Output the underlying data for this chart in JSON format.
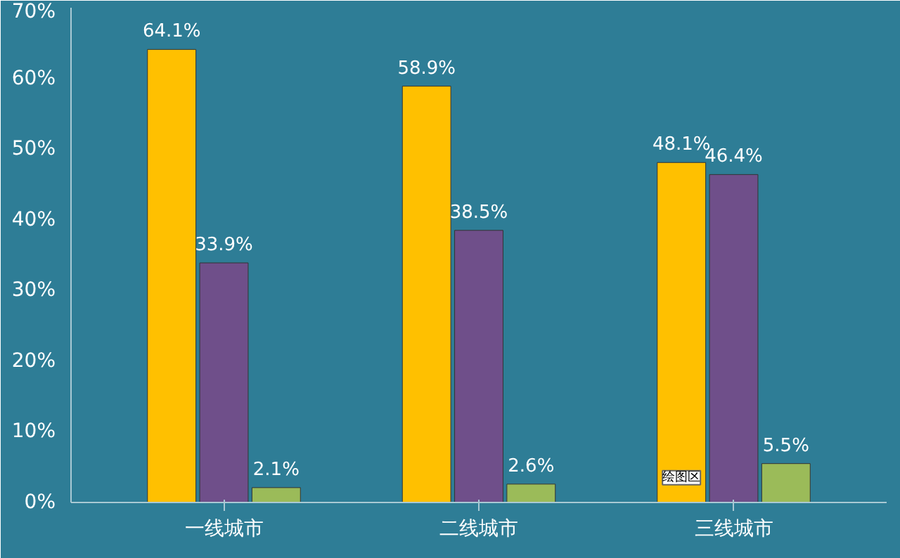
{
  "chart_data": {
    "type": "bar",
    "categories": [
      "一线城市",
      "二线城市",
      "三线城市"
    ],
    "series": [
      {
        "color": "#ffc000",
        "values": [
          64.1,
          58.9,
          48.1
        ],
        "value_labels": [
          "64.1%",
          "58.9%",
          "48.1%"
        ]
      },
      {
        "color": "#6f4f8a",
        "values": [
          33.9,
          38.5,
          46.4
        ],
        "value_labels": [
          "33.9%",
          "38.5%",
          "46.4%"
        ]
      },
      {
        "color": "#9bbb59",
        "values": [
          2.1,
          2.6,
          5.5
        ],
        "value_labels": [
          "2.1%",
          "2.6%",
          "5.5%"
        ]
      }
    ],
    "ylim": [
      0,
      70
    ],
    "yticks": [
      {
        "value": 0,
        "label": "0%"
      },
      {
        "value": 10,
        "label": "10%"
      },
      {
        "value": 20,
        "label": "20%"
      },
      {
        "value": 30,
        "label": "30%"
      },
      {
        "value": 40,
        "label": "40%"
      },
      {
        "value": 50,
        "label": "50%"
      },
      {
        "value": 60,
        "label": "60%"
      },
      {
        "value": 70,
        "label": "70%"
      }
    ],
    "grid": false,
    "annotations": [
      "绘图区"
    ]
  }
}
